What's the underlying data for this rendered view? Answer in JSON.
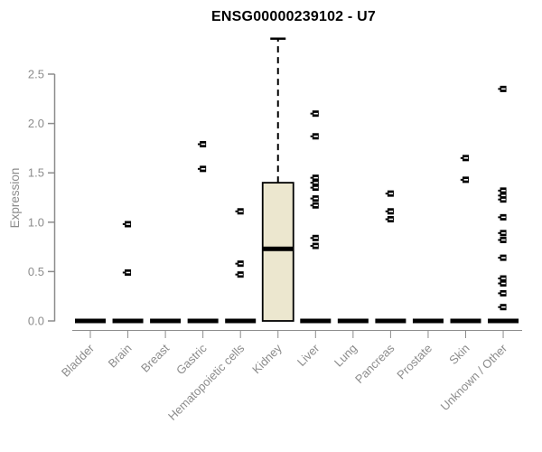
{
  "chart_data": {
    "type": "boxplot",
    "title": "ENSG00000239102 - U7",
    "ylabel": "Expression",
    "xlabel": "",
    "ylim": [
      0,
      2.9
    ],
    "yticks": [
      "0.0",
      "0.5",
      "1.0",
      "1.5",
      "2.0",
      "2.5"
    ],
    "grid": false,
    "legend": "none",
    "categories": [
      "Bladder",
      "Brain",
      "Breast",
      "Gastric",
      "Hematopoietic cells",
      "Kidney",
      "Liver",
      "Lung",
      "Pancreas",
      "Prostate",
      "Skin",
      "Unknown / Other"
    ],
    "series": [
      {
        "category": "Bladder",
        "q1": 0,
        "median": 0,
        "q3": 0,
        "whisker_low": 0,
        "whisker_high": 0,
        "outliers": []
      },
      {
        "category": "Brain",
        "q1": 0,
        "median": 0,
        "q3": 0,
        "whisker_low": 0,
        "whisker_high": 0,
        "outliers": [
          0.98,
          0.49
        ]
      },
      {
        "category": "Breast",
        "q1": 0,
        "median": 0,
        "q3": 0,
        "whisker_low": 0,
        "whisker_high": 0,
        "outliers": []
      },
      {
        "category": "Gastric",
        "q1": 0,
        "median": 0,
        "q3": 0,
        "whisker_low": 0,
        "whisker_high": 0,
        "outliers": [
          1.79,
          1.54
        ]
      },
      {
        "category": "Hematopoietic cells",
        "q1": 0,
        "median": 0,
        "q3": 0,
        "whisker_low": 0,
        "whisker_high": 0,
        "outliers": [
          1.11,
          0.58,
          0.47
        ]
      },
      {
        "category": "Kidney",
        "q1": 0,
        "median": 0.73,
        "q3": 1.4,
        "whisker_low": 0,
        "whisker_high": 2.86,
        "outliers": []
      },
      {
        "category": "Liver",
        "q1": 0,
        "median": 0,
        "q3": 0,
        "whisker_low": 0,
        "whisker_high": 0,
        "outliers": [
          2.1,
          1.87,
          1.45,
          1.4,
          1.35,
          1.24,
          1.17,
          0.84,
          0.76
        ]
      },
      {
        "category": "Lung",
        "q1": 0,
        "median": 0,
        "q3": 0,
        "whisker_low": 0,
        "whisker_high": 0,
        "outliers": []
      },
      {
        "category": "Pancreas",
        "q1": 0,
        "median": 0,
        "q3": 0,
        "whisker_low": 0,
        "whisker_high": 0,
        "outliers": [
          1.29,
          1.11,
          1.03
        ]
      },
      {
        "category": "Prostate",
        "q1": 0,
        "median": 0,
        "q3": 0,
        "whisker_low": 0,
        "whisker_high": 0,
        "outliers": []
      },
      {
        "category": "Skin",
        "q1": 0,
        "median": 0,
        "q3": 0,
        "whisker_low": 0,
        "whisker_high": 0,
        "outliers": [
          1.65,
          1.43
        ]
      },
      {
        "category": "Unknown / Other",
        "q1": 0,
        "median": 0,
        "q3": 0,
        "whisker_low": 0,
        "whisker_high": 0,
        "outliers": [
          2.35,
          1.32,
          1.27,
          1.23,
          1.05,
          0.89,
          0.82,
          0.64,
          0.43,
          0.38,
          0.28,
          0.14
        ]
      }
    ],
    "colors": {
      "box_fill": "#ECE7CF",
      "box_border": "#000000",
      "median": "#000000",
      "whisker": "#000000",
      "point": "#000000",
      "axis": "#8C8C8C",
      "label": "#8C8C8C",
      "title": "#000000",
      "background": "#FFFFFF"
    }
  }
}
